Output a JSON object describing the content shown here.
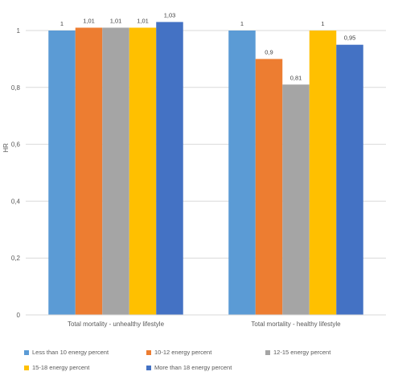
{
  "chart_data": {
    "type": "bar",
    "title": "",
    "xlabel": "",
    "ylabel": "HR",
    "ylim": [
      0,
      1
    ],
    "yticks": [
      "0",
      "0,2",
      "0,4",
      "0,6",
      "0,8",
      "1"
    ],
    "categories": [
      "Total mortality - unhealthy lifestyle",
      "Total mortality - healthy lifestyle"
    ],
    "series": [
      {
        "name": "Less than 10 energy percent",
        "color": "#5B9BD5",
        "values": [
          1,
          1
        ],
        "labels": [
          "1",
          "1"
        ]
      },
      {
        "name": "10-12 energy percent",
        "color": "#ED7D31",
        "values": [
          1.01,
          0.9
        ],
        "labels": [
          "1,01",
          "0,9"
        ]
      },
      {
        "name": "12-15 energy percent",
        "color": "#A5A5A5",
        "values": [
          1.01,
          0.81
        ],
        "labels": [
          "1,01",
          "0,81"
        ]
      },
      {
        "name": "15-18 energy percent",
        "color": "#FFC000",
        "values": [
          1.01,
          1
        ],
        "labels": [
          "1,01",
          "1"
        ]
      },
      {
        "name": "More than 18 energy percent",
        "color": "#4472C4",
        "values": [
          1.03,
          0.95
        ],
        "labels": [
          "1,03",
          "0,95"
        ]
      }
    ],
    "grid": true,
    "legend_position": "bottom"
  }
}
